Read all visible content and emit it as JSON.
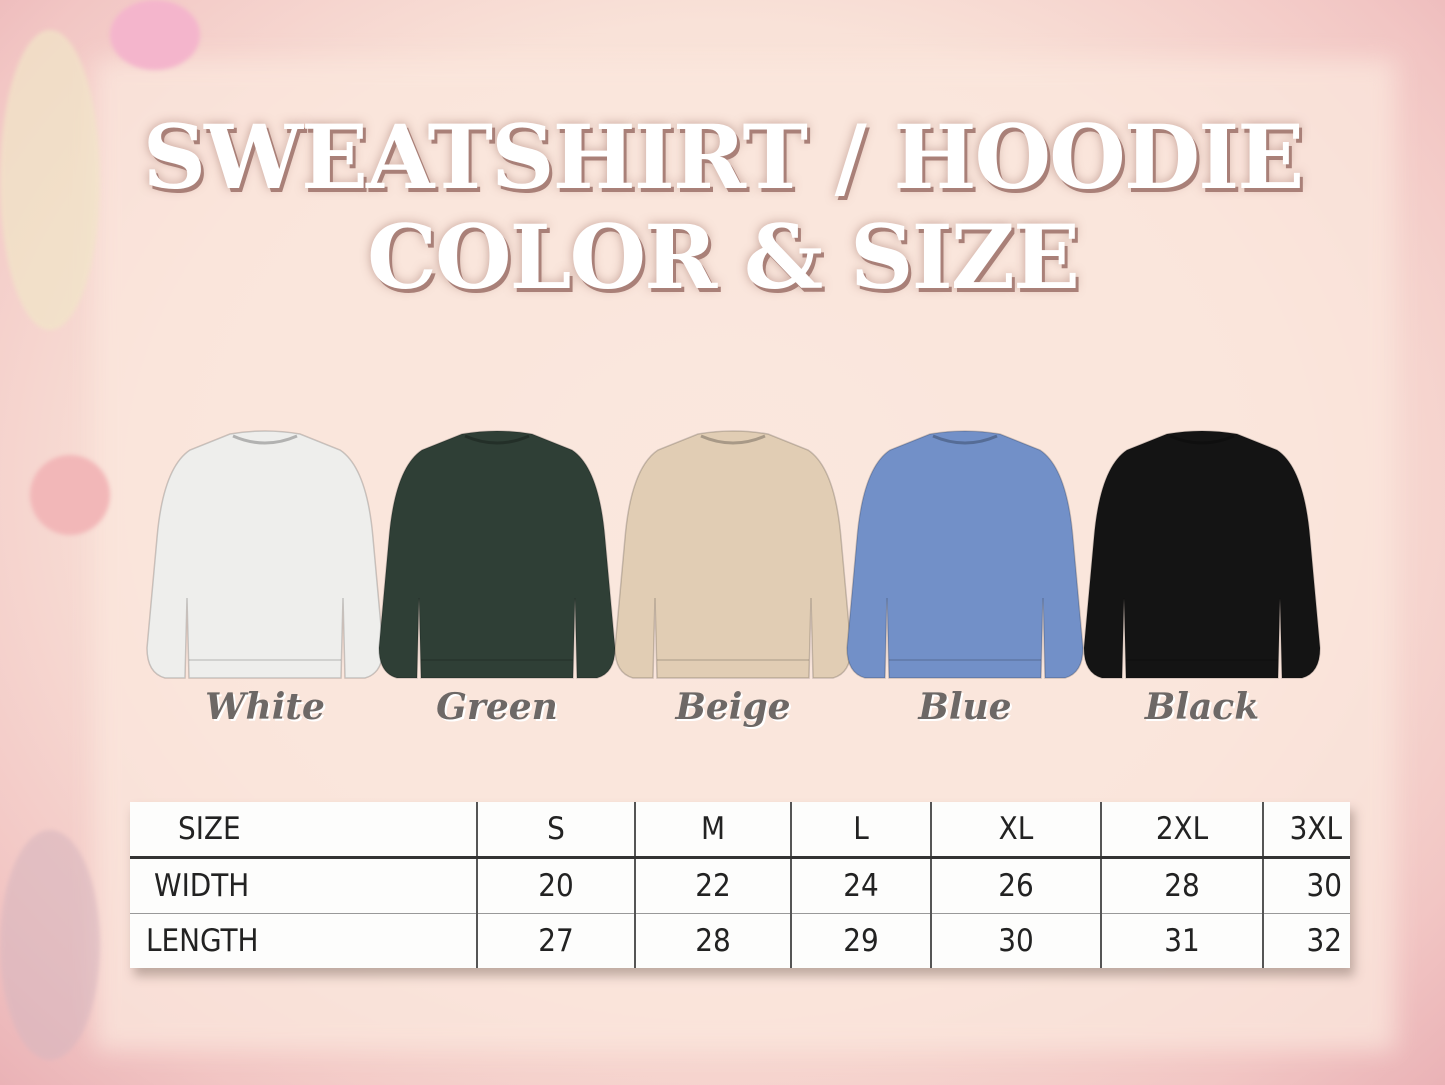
{
  "title": {
    "line1": "SWEATSHIRT / HOODIE",
    "line2": "COLOR & SIZE"
  },
  "colors": [
    {
      "label": "White",
      "hex": "#eeeeec"
    },
    {
      "label": "Green",
      "hex": "#2f3f36"
    },
    {
      "label": "Beige",
      "hex": "#e1cdb4"
    },
    {
      "label": "Blue",
      "hex": "#7290c8"
    },
    {
      "label": "Black",
      "hex": "#141414"
    }
  ],
  "size_table": {
    "headers": [
      "SIZE",
      "S",
      "M",
      "L",
      "XL",
      "2XL",
      "3XL"
    ],
    "rows": [
      [
        "WIDTH",
        "20",
        "22",
        "24",
        "26",
        "28",
        "30"
      ],
      [
        "LENGTH",
        "27",
        "28",
        "29",
        "30",
        "31",
        "32"
      ]
    ]
  }
}
